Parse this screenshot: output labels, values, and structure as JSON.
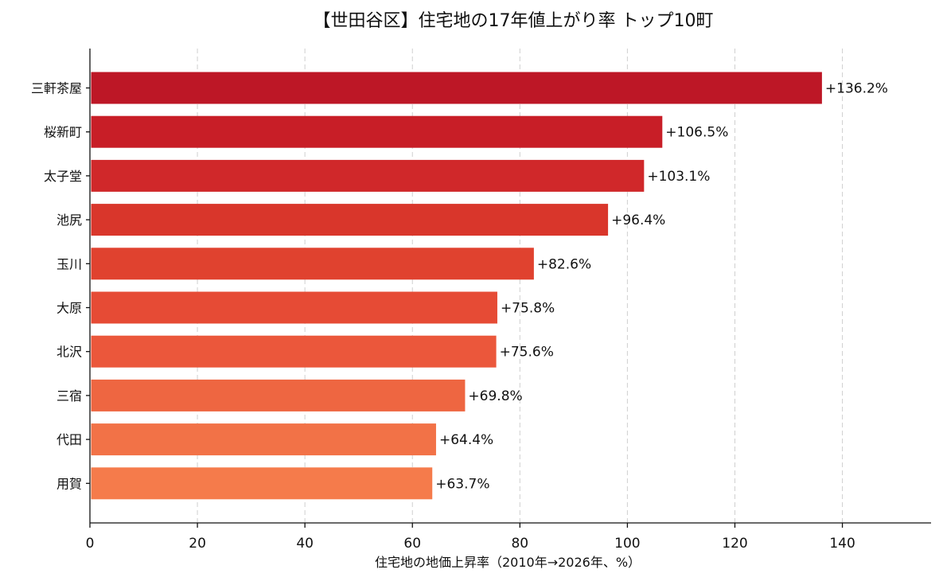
{
  "chart_data": {
    "type": "bar",
    "orientation": "horizontal",
    "title": "【世田谷区】住宅地の17年値上がり率 トップ10町",
    "xlabel": "住宅地の地価上昇率（2010年→2026年、%）",
    "ylabel": "",
    "xlim": [
      0,
      156.5
    ],
    "xticks": [
      0,
      20,
      40,
      60,
      80,
      100,
      120,
      140
    ],
    "grid": "vertical-dashed",
    "categories": [
      "三軒茶屋",
      "桜新町",
      "太子堂",
      "池尻",
      "玉川",
      "大原",
      "北沢",
      "三宿",
      "代田",
      "用賀"
    ],
    "values": [
      136.2,
      106.5,
      103.1,
      96.4,
      82.6,
      75.8,
      75.6,
      69.8,
      64.4,
      63.7
    ],
    "data_labels": [
      "+136.2%",
      "+106.5%",
      "+103.1%",
      "+96.4%",
      "+82.6%",
      "+75.8%",
      "+75.6%",
      "+69.8%",
      "+64.4%",
      "+63.7%"
    ],
    "colors": [
      "#bd1726",
      "#c81e27",
      "#d0282a",
      "#d9362b",
      "#e0422f",
      "#e64b35",
      "#eb573b",
      "#ee6641",
      "#f27247",
      "#f57b4b"
    ]
  }
}
